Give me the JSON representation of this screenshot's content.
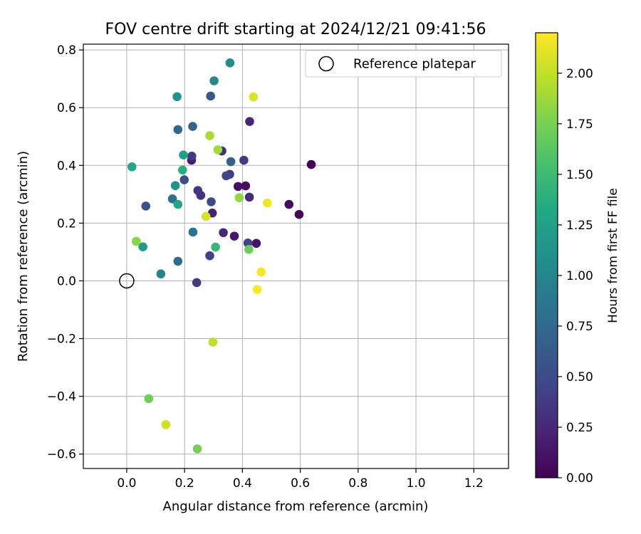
{
  "chart_data": {
    "type": "scatter",
    "title": "FOV centre drift starting at 2024/12/21 09:41:56",
    "xlabel": "Angular distance from reference (arcmin)",
    "ylabel": "Rotation from reference (arcmin)",
    "xlim": [
      -0.15,
      1.32
    ],
    "ylim": [
      -0.65,
      0.82
    ],
    "xticks": [
      0.0,
      0.2,
      0.4,
      0.6,
      0.8,
      1.0,
      1.2
    ],
    "xtick_labels": [
      "0.0",
      "0.2",
      "0.4",
      "0.6",
      "0.8",
      "1.0",
      "1.2"
    ],
    "yticks": [
      -0.6,
      -0.4,
      -0.2,
      0.0,
      0.2,
      0.4,
      0.6,
      0.8
    ],
    "ytick_labels": [
      "−0.6",
      "−0.4",
      "−0.2",
      "0.0",
      "0.2",
      "0.4",
      "0.6",
      "0.8"
    ],
    "grid": true,
    "legend": {
      "position": "upper-right",
      "label": "Reference platepar"
    },
    "reference_point": {
      "x": 0.0,
      "y": 0.0
    },
    "colorbar": {
      "label": "Hours from first FF file",
      "range": [
        0.0,
        2.2
      ],
      "ticks": [
        0.0,
        0.25,
        0.5,
        0.75,
        1.0,
        1.25,
        1.5,
        1.75,
        2.0
      ],
      "tick_labels": [
        "0.00",
        "0.25",
        "0.50",
        "0.75",
        "1.00",
        "1.25",
        "1.50",
        "1.75",
        "2.00"
      ],
      "colormap": "viridis"
    },
    "points": [
      {
        "x": 0.638,
        "y": 0.403,
        "c": 0.02
      },
      {
        "x": 0.596,
        "y": 0.23,
        "c": 0.04
      },
      {
        "x": 0.561,
        "y": 0.265,
        "c": 0.06
      },
      {
        "x": 0.411,
        "y": 0.329,
        "c": 0.08
      },
      {
        "x": 0.385,
        "y": 0.327,
        "c": 0.1
      },
      {
        "x": 0.448,
        "y": 0.13,
        "c": 0.12
      },
      {
        "x": 0.372,
        "y": 0.155,
        "c": 0.14
      },
      {
        "x": 0.224,
        "y": 0.418,
        "c": 0.16
      },
      {
        "x": 0.296,
        "y": 0.235,
        "c": 0.2
      },
      {
        "x": 0.334,
        "y": 0.167,
        "c": 0.24
      },
      {
        "x": 0.425,
        "y": 0.552,
        "c": 0.25
      },
      {
        "x": 0.424,
        "y": 0.29,
        "c": 0.28
      },
      {
        "x": 0.329,
        "y": 0.45,
        "c": 0.3
      },
      {
        "x": 0.256,
        "y": 0.296,
        "c": 0.32
      },
      {
        "x": 0.246,
        "y": 0.313,
        "c": 0.34
      },
      {
        "x": 0.242,
        "y": -0.006,
        "c": 0.36
      },
      {
        "x": 0.225,
        "y": 0.432,
        "c": 0.38
      },
      {
        "x": 0.405,
        "y": 0.418,
        "c": 0.38
      },
      {
        "x": 0.356,
        "y": 0.369,
        "c": 0.4
      },
      {
        "x": 0.287,
        "y": 0.087,
        "c": 0.42
      },
      {
        "x": 0.419,
        "y": 0.131,
        "c": 0.44
      },
      {
        "x": 0.344,
        "y": 0.364,
        "c": 0.46
      },
      {
        "x": 0.292,
        "y": 0.274,
        "c": 0.5
      },
      {
        "x": 0.199,
        "y": 0.35,
        "c": 0.52
      },
      {
        "x": 0.066,
        "y": 0.259,
        "c": 0.55
      },
      {
        "x": 0.29,
        "y": 0.64,
        "c": 0.6
      },
      {
        "x": 0.36,
        "y": 0.413,
        "c": 0.66
      },
      {
        "x": 0.228,
        "y": 0.535,
        "c": 0.7
      },
      {
        "x": 0.177,
        "y": 0.524,
        "c": 0.74
      },
      {
        "x": 0.177,
        "y": 0.068,
        "c": 0.76
      },
      {
        "x": 0.158,
        "y": 0.284,
        "c": 0.8
      },
      {
        "x": 0.229,
        "y": 0.169,
        "c": 0.82
      },
      {
        "x": 0.118,
        "y": 0.024,
        "c": 0.98
      },
      {
        "x": 0.302,
        "y": 0.693,
        "c": 1.02
      },
      {
        "x": 0.357,
        "y": 0.755,
        "c": 1.06
      },
      {
        "x": 0.168,
        "y": 0.33,
        "c": 1.1
      },
      {
        "x": 0.174,
        "y": 0.638,
        "c": 1.14
      },
      {
        "x": 0.056,
        "y": 0.118,
        "c": 1.2
      },
      {
        "x": 0.196,
        "y": 0.436,
        "c": 1.24
      },
      {
        "x": 0.177,
        "y": 0.265,
        "c": 1.28
      },
      {
        "x": 0.018,
        "y": 0.395,
        "c": 1.32
      },
      {
        "x": 0.193,
        "y": 0.384,
        "c": 1.38
      },
      {
        "x": 0.307,
        "y": 0.117,
        "c": 1.46
      },
      {
        "x": 0.422,
        "y": 0.109,
        "c": 1.7
      },
      {
        "x": 0.076,
        "y": -0.408,
        "c": 1.72
      },
      {
        "x": 0.244,
        "y": -0.582,
        "c": 1.74
      },
      {
        "x": 0.033,
        "y": 0.137,
        "c": 1.8
      },
      {
        "x": 0.389,
        "y": 0.288,
        "c": 1.84
      },
      {
        "x": 0.315,
        "y": 0.454,
        "c": 1.88
      },
      {
        "x": 0.287,
        "y": 0.503,
        "c": 1.92
      },
      {
        "x": 0.298,
        "y": -0.212,
        "c": 2.0
      },
      {
        "x": 0.135,
        "y": -0.498,
        "c": 2.04
      },
      {
        "x": 0.274,
        "y": 0.223,
        "c": 2.06
      },
      {
        "x": 0.438,
        "y": 0.637,
        "c": 2.08
      },
      {
        "x": 0.486,
        "y": 0.27,
        "c": 2.16
      },
      {
        "x": 0.465,
        "y": 0.031,
        "c": 2.18
      },
      {
        "x": 0.451,
        "y": -0.03,
        "c": 2.19
      }
    ]
  }
}
